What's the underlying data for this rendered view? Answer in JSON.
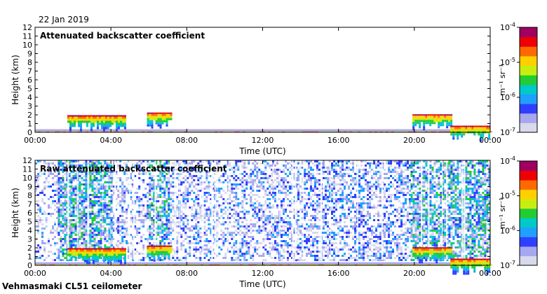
{
  "header": {
    "date": "22 Jan 2019"
  },
  "footer": {
    "instrument": "Vehmasmaki CL51 ceilometer"
  },
  "colorbar_label": "m⁻¹ sr⁻¹",
  "colormap": [
    "#d9d9ec",
    "#a7a7f0",
    "#2f3fff",
    "#1fa0ff",
    "#00c9c9",
    "#22cc33",
    "#c8ee11",
    "#ffd000",
    "#ff6a00",
    "#ee0000",
    "#a00060"
  ],
  "chart_data": [
    {
      "type": "heatmap",
      "title": "Attenuated backscatter coefficient",
      "xlabel": "Time (UTC)",
      "ylabel": "Height (km)",
      "xlim": [
        "00:00",
        "24:00"
      ],
      "ylim": [
        0,
        12
      ],
      "x_ticks": [
        "00:00",
        "04:00",
        "08:00",
        "12:00",
        "16:00",
        "20:00",
        "00:00"
      ],
      "y_ticks": [
        0,
        1,
        2,
        3,
        4,
        5,
        6,
        7,
        8,
        9,
        10,
        11,
        12
      ],
      "colorbar": {
        "scale": "log",
        "range": [
          1e-07,
          0.0001
        ],
        "ticks": [
          "10",
          "10",
          "10",
          "10"
        ],
        "tick_exponents": [
          "-7",
          "-6",
          "-5",
          "-4"
        ]
      },
      "cloud_layers": [
        {
          "start_h": 1.7,
          "end_h": 4.7,
          "base_km": 1.8
        },
        {
          "start_h": 5.9,
          "end_h": 7.2,
          "base_km": 2.1
        },
        {
          "start_h": 19.9,
          "end_h": 21.9,
          "base_km": 1.9
        },
        {
          "start_h": 21.9,
          "end_h": 24.0,
          "base_km": 0.6
        }
      ]
    },
    {
      "type": "heatmap",
      "title": "Raw attenuated backscatter coefficient",
      "xlabel": "Time (UTC)",
      "ylabel": "Height (km)",
      "xlim": [
        "00:00",
        "24:00"
      ],
      "ylim": [
        0,
        12
      ],
      "x_ticks": [
        "00:00",
        "04:00",
        "08:00",
        "12:00",
        "16:00",
        "20:00",
        "00:00"
      ],
      "y_ticks": [
        0,
        1,
        2,
        3,
        4,
        5,
        6,
        7,
        8,
        9,
        10,
        11,
        12
      ],
      "colorbar": {
        "scale": "log",
        "range": [
          1e-07,
          0.0001
        ],
        "ticks": [
          "10",
          "10",
          "10",
          "10"
        ],
        "tick_exponents": [
          "-7",
          "-6",
          "-5",
          "-4"
        ]
      },
      "cloud_layers": [
        {
          "start_h": 1.7,
          "end_h": 4.7,
          "base_km": 1.8
        },
        {
          "start_h": 5.9,
          "end_h": 7.2,
          "base_km": 2.1
        },
        {
          "start_h": 19.9,
          "end_h": 21.9,
          "base_km": 1.9
        },
        {
          "start_h": 21.9,
          "end_h": 24.0,
          "base_km": 0.6
        }
      ],
      "noise_segments": [
        {
          "start_h": 0.0,
          "end_h": 1.2,
          "level": 0.12
        },
        {
          "start_h": 1.2,
          "end_h": 4.0,
          "level": 0.85
        },
        {
          "start_h": 4.0,
          "end_h": 6.0,
          "level": 0.2
        },
        {
          "start_h": 6.0,
          "end_h": 7.0,
          "level": 0.75
        },
        {
          "start_h": 7.0,
          "end_h": 12.5,
          "level": 0.3
        },
        {
          "start_h": 12.5,
          "end_h": 19.8,
          "level": 0.4
        },
        {
          "start_h": 19.8,
          "end_h": 24.0,
          "level": 0.8
        }
      ]
    }
  ]
}
